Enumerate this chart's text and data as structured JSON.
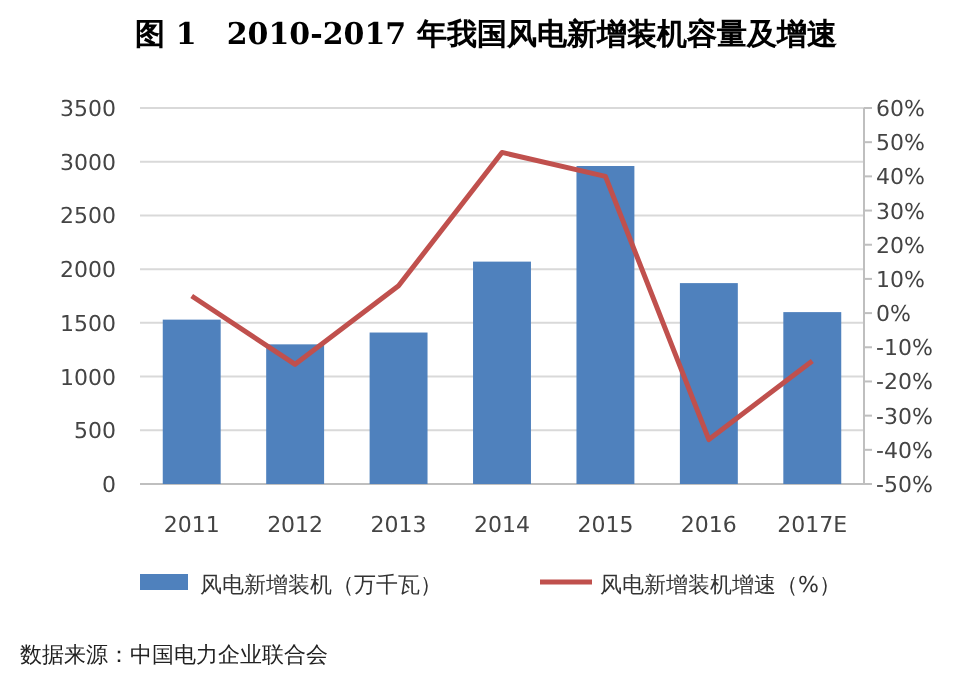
{
  "chart_data": {
    "type": "bar",
    "title": "图 1　2010-2017 年我国风电新增装机容量及增速",
    "categories": [
      "2011",
      "2012",
      "2013",
      "2014",
      "2015",
      "2016",
      "2017E"
    ],
    "series": [
      {
        "name": "风电新增装机（万千瓦）",
        "color": "#4f81bd",
        "values": [
          1530,
          1300,
          1410,
          2070,
          2960,
          1870,
          1600
        ]
      },
      {
        "name": "风电新增装机增速（%）",
        "type": "line",
        "axis": "y2",
        "color": "#c0504d",
        "values": [
          5,
          -15,
          8,
          47,
          40,
          -37,
          -14
        ]
      }
    ],
    "ylim": [
      0,
      3500
    ],
    "yticks": [
      0,
      500,
      1000,
      1500,
      2000,
      2500,
      3000,
      3500
    ],
    "y2lim": [
      -50,
      60
    ],
    "y2ticks": [
      {
        "value": -50,
        "label": "-50%"
      },
      {
        "value": -40,
        "label": "-40%"
      },
      {
        "value": -30,
        "label": "-30%"
      },
      {
        "value": -20,
        "label": "-20%"
      },
      {
        "value": -10,
        "label": "-10%"
      },
      {
        "value": 0,
        "label": "0%"
      },
      {
        "value": 10,
        "label": "10%"
      },
      {
        "value": 20,
        "label": "20%"
      },
      {
        "value": 30,
        "label": "30%"
      },
      {
        "value": 40,
        "label": "40%"
      },
      {
        "value": 50,
        "label": "50%"
      },
      {
        "value": 60,
        "label": "60%"
      }
    ],
    "grid": "y",
    "legend": "bottom",
    "marker": "none",
    "line_style": "solid",
    "annotations": [
      "数据来源：中国电力企业联合会"
    ]
  }
}
